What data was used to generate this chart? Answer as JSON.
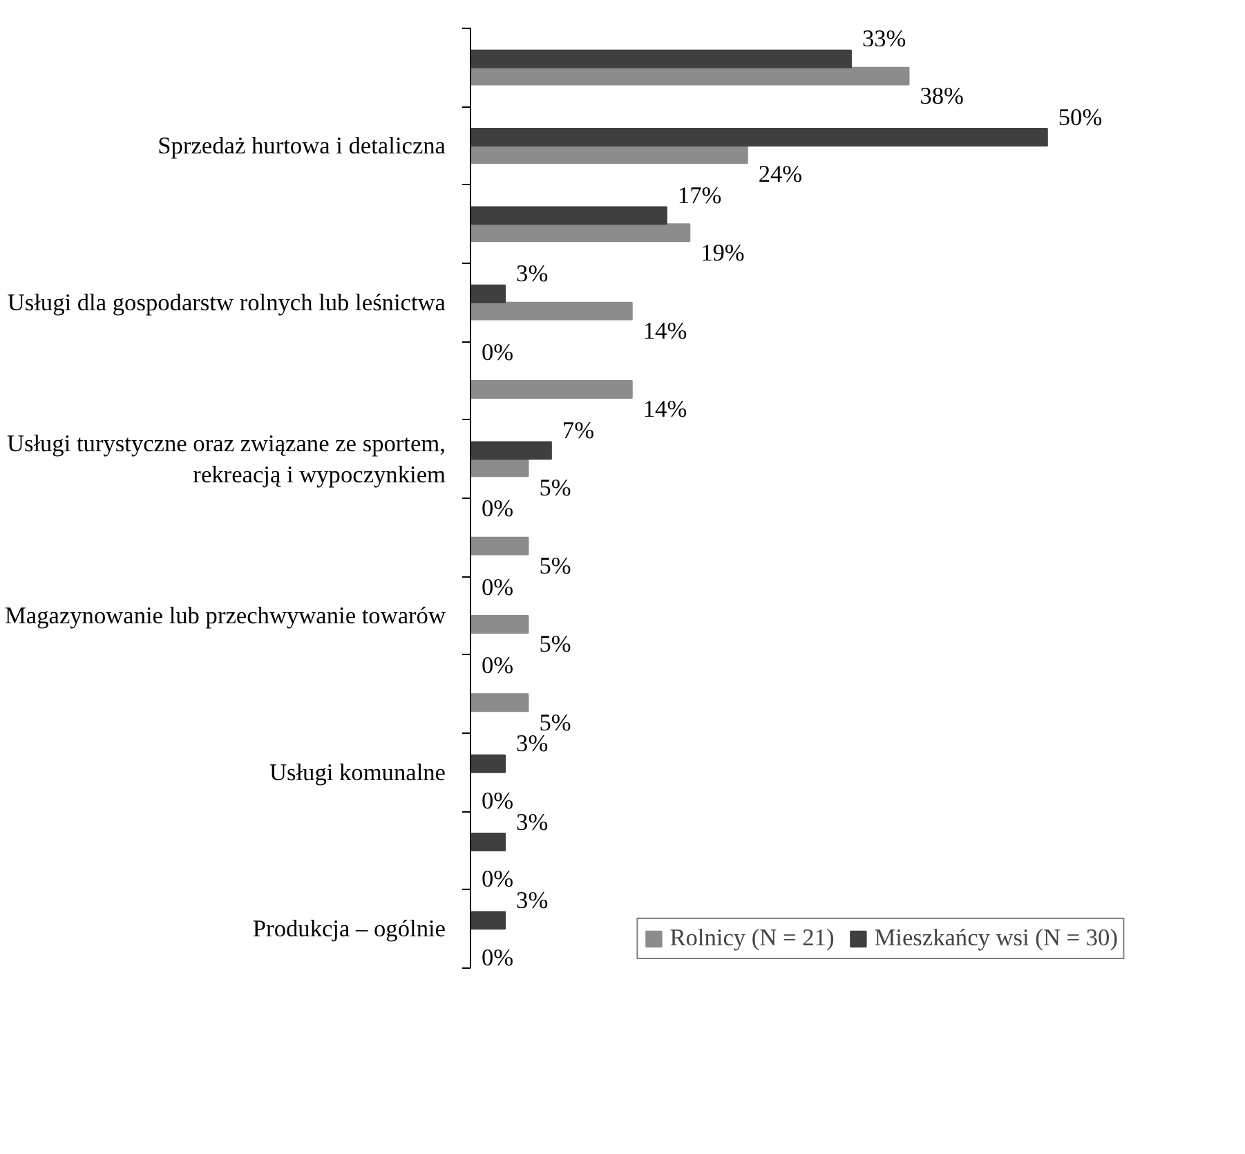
{
  "chart_data": {
    "type": "bar",
    "orientation": "horizontal",
    "categories": [
      null,
      "Sprzedaż hurtowa i detaliczna",
      null,
      "Usługi dla gospodarstw rolnych lub leśnictwa",
      null,
      "Usługi turystyczne oraz związane ze sportem,\nrekreacją i wypoczynkiem",
      null,
      "Magazynowanie lub przechwywanie towarów",
      null,
      "Usługi komunalne",
      null,
      "Produkcja – ogólnie"
    ],
    "series": [
      {
        "name": "Rolnicy (N = 21)",
        "color": "#8c8c8c",
        "values": [
          38,
          24,
          19,
          14,
          14,
          5,
          5,
          5,
          5,
          0,
          0,
          0
        ],
        "value_labels": [
          "38%",
          "24%",
          "19%",
          "14%",
          "14%",
          "5%",
          "5%",
          "5%",
          "5%",
          "0%",
          "0%",
          "0%"
        ]
      },
      {
        "name": "Mieszkańcy wsi (N = 30)",
        "color": "#3f3f3f",
        "values": [
          33,
          50,
          17,
          3,
          0,
          7,
          0,
          0,
          0,
          3,
          3,
          3
        ],
        "value_labels": [
          "33%",
          "50%",
          "17%",
          "3%",
          "0%",
          "7%",
          "0%",
          "0%",
          "0%",
          "3%",
          "3%",
          "3%"
        ]
      }
    ],
    "legend": "bottom right",
    "grid": false
  }
}
